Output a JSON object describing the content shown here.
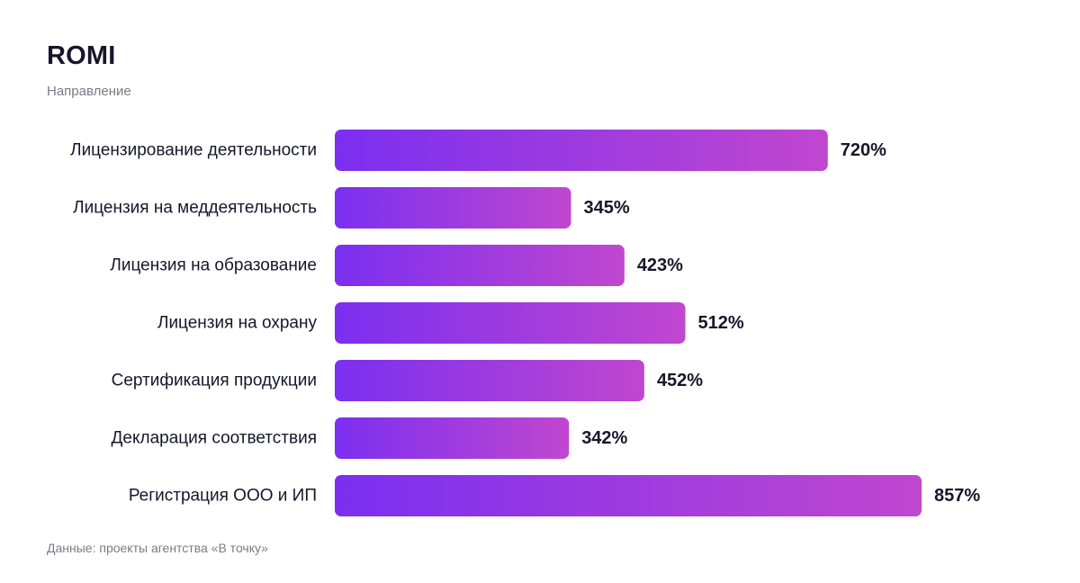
{
  "header": {
    "title": "ROMI",
    "subtitle": "Направление"
  },
  "footer": {
    "source": "Данные: проекты агентства «В точку»"
  },
  "colors": {
    "bar_start": "#7B2FF0",
    "bar_end": "#C047CF",
    "text": "#16162b",
    "muted": "#7b7b88"
  },
  "chart_data": {
    "type": "bar",
    "orientation": "horizontal",
    "categories": [
      "Лицензирование деятельности",
      "Лицензия на меддеятельность",
      "Лицензия на образование",
      "Лицензия на охрану",
      "Сертификация продукции",
      "Декларация соответствия",
      "Регистрация ООО и ИП"
    ],
    "values": [
      720,
      345,
      423,
      512,
      452,
      342,
      857
    ],
    "value_labels": [
      "720%",
      "345%",
      "423%",
      "512%",
      "452%",
      "342%",
      "857%"
    ],
    "unit": "%",
    "title": "ROMI",
    "xlabel": "",
    "ylabel": "Направление",
    "xlim": [
      0,
      857
    ],
    "grid": false,
    "legend": "none"
  }
}
